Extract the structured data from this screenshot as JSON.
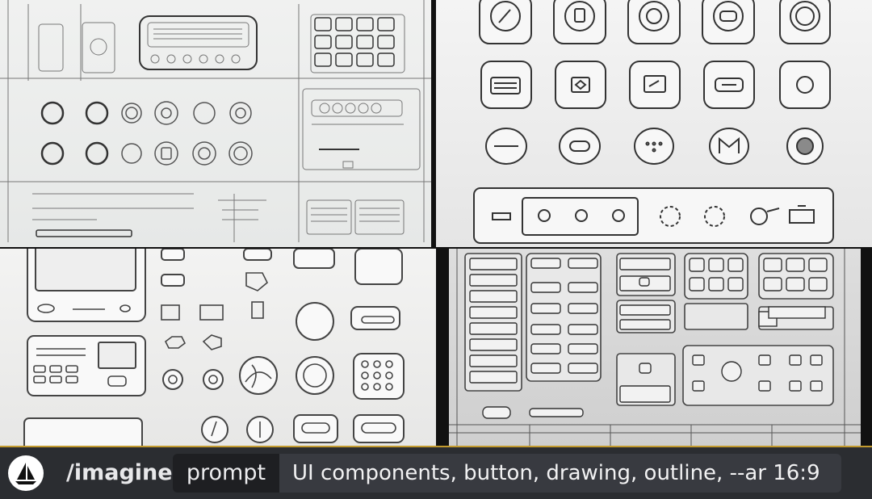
{
  "prompt_bar": {
    "command": "/imagine",
    "option_label": "prompt",
    "prompt_text": "UI components, button, drawing, outline, --ar 16:9",
    "avatar_icon": "sailboat-icon"
  },
  "image_grid": {
    "tiles": [
      "blueprint-sketch",
      "rounded-icon-buttons",
      "white-3d-components",
      "metallic-control-panel"
    ]
  },
  "colors": {
    "bar_background": "#2b2d31",
    "bar_border": "#c29a2e",
    "chip_background": "#1e1f22",
    "input_background": "#383a40"
  }
}
